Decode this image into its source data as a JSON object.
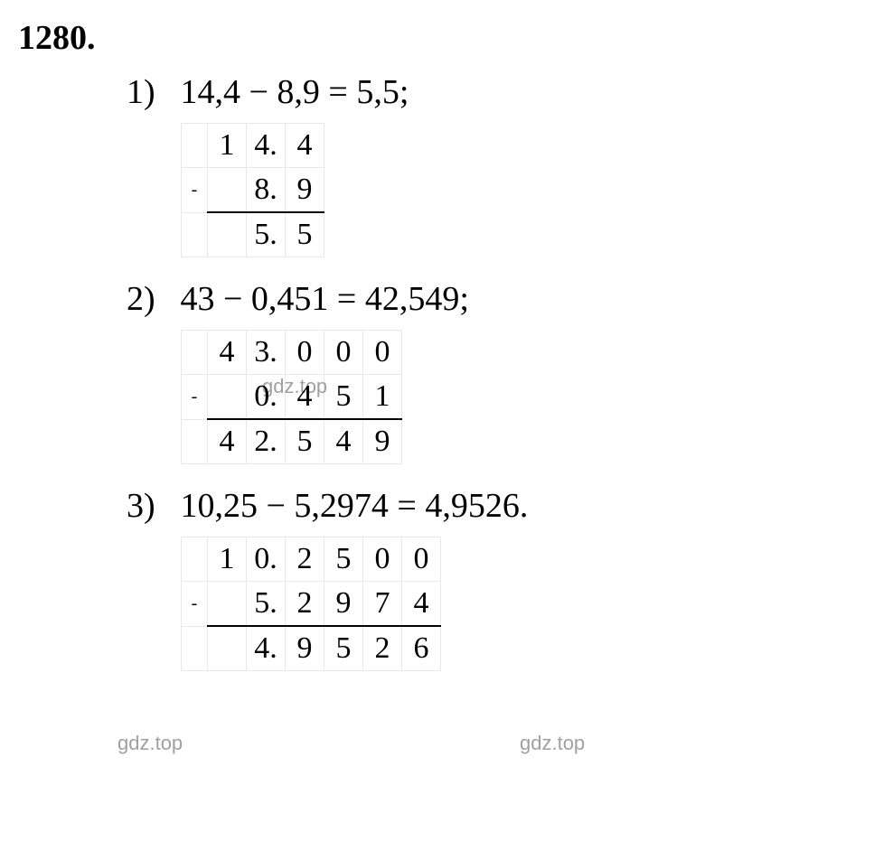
{
  "problem_number": "1280.",
  "watermark_text": "gdz.top",
  "text_color": "#000000",
  "table_border_color": "#e8e8e8",
  "underline_color": "#000000",
  "background_color": "#ffffff",
  "watermark_color": "#a0a0a0",
  "font_family": "Times New Roman",
  "problem_fontsize": 38,
  "equation_fontsize": 38,
  "table_fontsize": 34,
  "items": [
    {
      "index": "1)",
      "equation": "14,4 − 8,9 = 5,5;",
      "calc": {
        "cols": 4,
        "sign": "-",
        "rows": [
          [
            "1",
            "4.",
            "4"
          ],
          [
            "",
            "8.",
            "9"
          ],
          [
            "",
            "5.",
            "5"
          ]
        ]
      }
    },
    {
      "index": "2)",
      "equation": "43 − 0,451 = 42,549;",
      "calc": {
        "cols": 6,
        "sign": "-",
        "rows": [
          [
            "4",
            "3.",
            "0",
            "0",
            "0"
          ],
          [
            "",
            "0.",
            "4",
            "5",
            "1"
          ],
          [
            "4",
            "2.",
            "5",
            "4",
            "9"
          ]
        ]
      }
    },
    {
      "index": "3)",
      "equation": "10,25 − 5,2974 = 4,9526.",
      "calc": {
        "cols": 7,
        "sign": "-",
        "rows": [
          [
            "1",
            "0.",
            "2",
            "5",
            "0",
            "0"
          ],
          [
            "",
            "5.",
            "2",
            "9",
            "7",
            "4"
          ],
          [
            "",
            "4.",
            "9",
            "5",
            "2",
            "6"
          ]
        ]
      }
    }
  ]
}
